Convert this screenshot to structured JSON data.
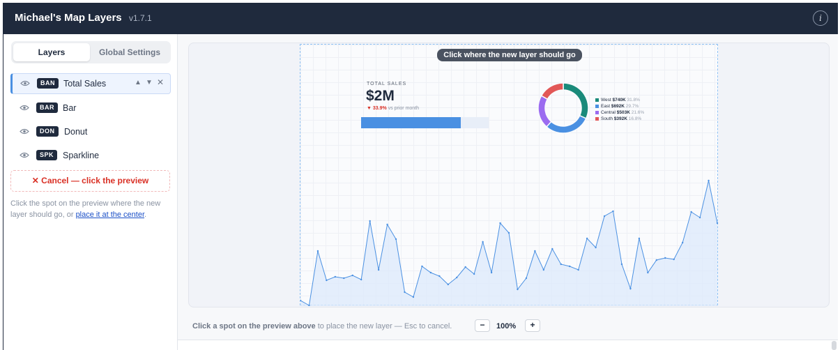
{
  "app": {
    "title": "Michael's Map Layers",
    "version": "v1.7.1",
    "info_icon": "info-icon"
  },
  "sidebar": {
    "tabs": [
      {
        "label": "Layers",
        "active": true
      },
      {
        "label": "Global Settings",
        "active": false
      }
    ],
    "layers": [
      {
        "badge": "BAN",
        "name": "Total Sales",
        "selected": true
      },
      {
        "badge": "BAR",
        "name": "Bar",
        "selected": false
      },
      {
        "badge": "DON",
        "name": "Donut",
        "selected": false
      },
      {
        "badge": "SPK",
        "name": "Sparkline",
        "selected": false
      }
    ],
    "row_controls": {
      "up": "▲",
      "down": "▼",
      "remove": "✕"
    },
    "cancel_label": "✕ Cancel — click the preview",
    "help_text": "Click the spot on the preview where the new layer should go, or ",
    "help_link": "place it at the center",
    "help_suffix": "."
  },
  "preview": {
    "toast": "Click where the new layer should go",
    "total_sales": {
      "title": "TOTAL SALES",
      "value": "$2M",
      "change": "▼ 33.9%",
      "change_suffix": "vs prior month",
      "bar_fraction": 0.78
    },
    "donut": {
      "segments": [
        {
          "name": "West",
          "value": "$740K",
          "pct": "31.8%",
          "color": "#1a8a7a"
        },
        {
          "name": "East",
          "value": "$692K",
          "pct": "29.7%",
          "color": "#4a90e2"
        },
        {
          "name": "Central",
          "value": "$503K",
          "pct": "21.6%",
          "color": "#9b6cf0"
        },
        {
          "name": "South",
          "value": "$392K",
          "pct": "16.8%",
          "color": "#e25757"
        }
      ]
    }
  },
  "chart_data": {
    "type": "area",
    "series": [
      {
        "values": [
          8,
          1,
          79,
          37,
          42,
          40,
          44,
          38,
          122,
          52,
          117,
          96,
          20,
          13,
          57,
          48,
          43,
          31,
          41,
          56,
          46,
          92,
          48,
          119,
          105,
          24,
          40,
          79,
          52,
          82,
          60,
          57,
          52,
          97,
          84,
          129,
          136,
          60,
          25,
          97,
          48,
          66,
          69,
          67,
          91,
          135,
          127,
          180,
          119
        ]
      }
    ],
    "line_color": "#4a90e2",
    "fill_color": "#dce9fb"
  },
  "footer": {
    "hint_bold": "Click a spot on the preview above",
    "hint_rest": " to place the new layer — Esc to cancel.",
    "zoom_minus": "−",
    "zoom_value": "100%",
    "zoom_plus": "+"
  }
}
